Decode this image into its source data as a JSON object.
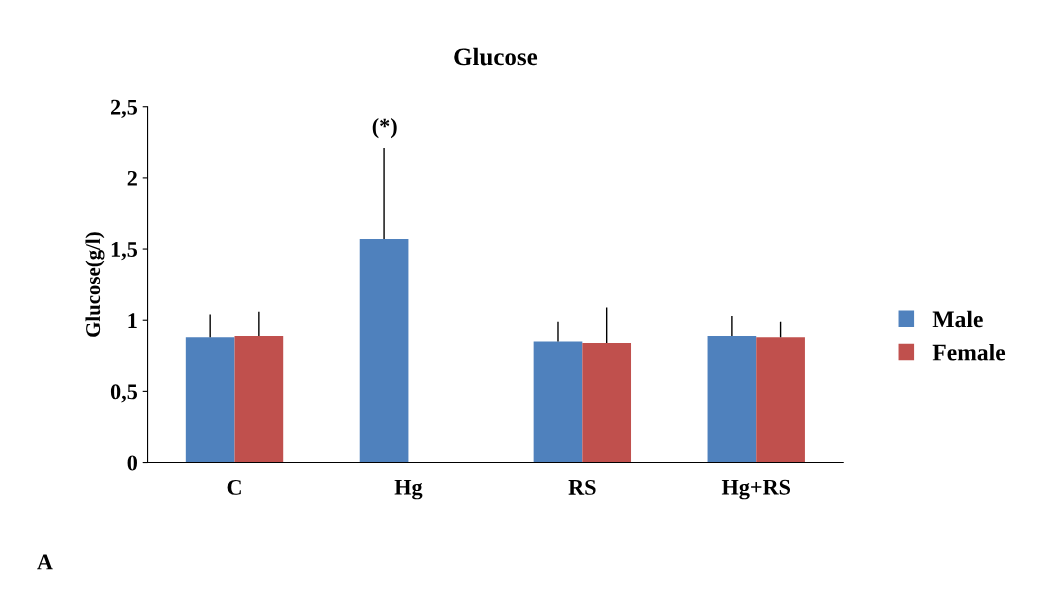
{
  "chart_data": {
    "type": "bar",
    "title": "Glucose",
    "ylabel": "Glucose(g/l)",
    "categories": [
      "C",
      "Hg",
      "RS",
      "Hg+RS"
    ],
    "series": [
      {
        "name": "Male",
        "color": "#4f81bd",
        "values": [
          0.88,
          1.57,
          0.85,
          0.89
        ],
        "errors": [
          [
            0.88,
            1.04
          ],
          [
            1.57,
            2.21
          ],
          [
            0.85,
            0.99
          ],
          [
            0.89,
            1.03
          ]
        ]
      },
      {
        "name": "Female",
        "color": "#c0504d",
        "values": [
          0.89,
          null,
          0.84,
          0.88
        ],
        "errors": [
          [
            0.89,
            1.06
          ],
          null,
          [
            0.84,
            1.09
          ],
          [
            0.88,
            0.99
          ]
        ]
      }
    ],
    "ylim": [
      0,
      2.5
    ],
    "yticks": [
      {
        "value": 0,
        "label": "0"
      },
      {
        "value": 0.5,
        "label": "0,5"
      },
      {
        "value": 1,
        "label": "1"
      },
      {
        "value": 1.5,
        "label": "1,5"
      },
      {
        "value": 2,
        "label": "2"
      },
      {
        "value": 2.5,
        "label": "2,5"
      }
    ],
    "annotations": [
      "(*)",
      "A"
    ],
    "legend": "right",
    "grid": false
  }
}
